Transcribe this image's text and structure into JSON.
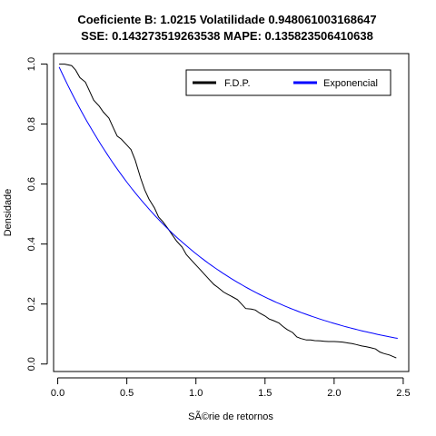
{
  "chart_data": {
    "type": "line",
    "title": "Coeficiente B:  1.0215 Volatilidade 0.948061003168647",
    "subtitle": "SSE: 0.143273519263538 MAPE:  0.135823506410638",
    "xlabel": "SÃ©rie de retornos",
    "ylabel": "Densidade",
    "xlim": [
      -0.03,
      2.54
    ],
    "ylim": [
      -0.025,
      1.035
    ],
    "x_ticks": [
      0.0,
      0.5,
      1.0,
      1.5,
      2.0,
      2.5
    ],
    "x_tick_labels": [
      "0.0",
      "0.5",
      "1.0",
      "1.5",
      "2.0",
      "2.5"
    ],
    "y_ticks": [
      0.0,
      0.2,
      0.4,
      0.6,
      0.8,
      1.0
    ],
    "y_tick_labels": [
      "0.0",
      "0.2",
      "0.4",
      "0.6",
      "0.8",
      "1.0"
    ],
    "legend_position": "top-right",
    "series": [
      {
        "name": "F.D.P.",
        "color": "#000000",
        "line_width": 1,
        "x": [
          0.01,
          0.05,
          0.1,
          0.13,
          0.16,
          0.2,
          0.23,
          0.26,
          0.3,
          0.33,
          0.37,
          0.4,
          0.43,
          0.46,
          0.5,
          0.53,
          0.56,
          0.6,
          0.63,
          0.66,
          0.7,
          0.73,
          0.76,
          0.8,
          0.83,
          0.86,
          0.9,
          0.93,
          0.96,
          1.0,
          1.03,
          1.06,
          1.1,
          1.13,
          1.16,
          1.2,
          1.23,
          1.26,
          1.3,
          1.33,
          1.36,
          1.4,
          1.43,
          1.46,
          1.5,
          1.53,
          1.56,
          1.6,
          1.63,
          1.66,
          1.7,
          1.73,
          1.76,
          1.8,
          1.83,
          1.86,
          1.9,
          1.93,
          1.96,
          2.0,
          2.03,
          2.06,
          2.1,
          2.13,
          2.16,
          2.2,
          2.23,
          2.26,
          2.3,
          2.33,
          2.36,
          2.4,
          2.45
        ],
        "y": [
          1.0,
          1.0,
          0.995,
          0.98,
          0.955,
          0.94,
          0.91,
          0.88,
          0.86,
          0.84,
          0.82,
          0.79,
          0.76,
          0.75,
          0.73,
          0.715,
          0.68,
          0.62,
          0.58,
          0.55,
          0.52,
          0.49,
          0.475,
          0.45,
          0.43,
          0.41,
          0.39,
          0.365,
          0.35,
          0.33,
          0.315,
          0.3,
          0.28,
          0.265,
          0.255,
          0.24,
          0.232,
          0.225,
          0.215,
          0.2,
          0.185,
          0.183,
          0.18,
          0.17,
          0.16,
          0.15,
          0.145,
          0.137,
          0.125,
          0.115,
          0.105,
          0.09,
          0.085,
          0.08,
          0.08,
          0.078,
          0.077,
          0.076,
          0.075,
          0.075,
          0.074,
          0.073,
          0.07,
          0.068,
          0.065,
          0.06,
          0.058,
          0.055,
          0.05,
          0.04,
          0.035,
          0.03,
          0.02
        ]
      },
      {
        "name": "Exponencial",
        "color": "#0000ff",
        "line_width": 1,
        "function": "exp(-x)",
        "x_range": [
          0.01,
          2.46
        ]
      }
    ]
  }
}
